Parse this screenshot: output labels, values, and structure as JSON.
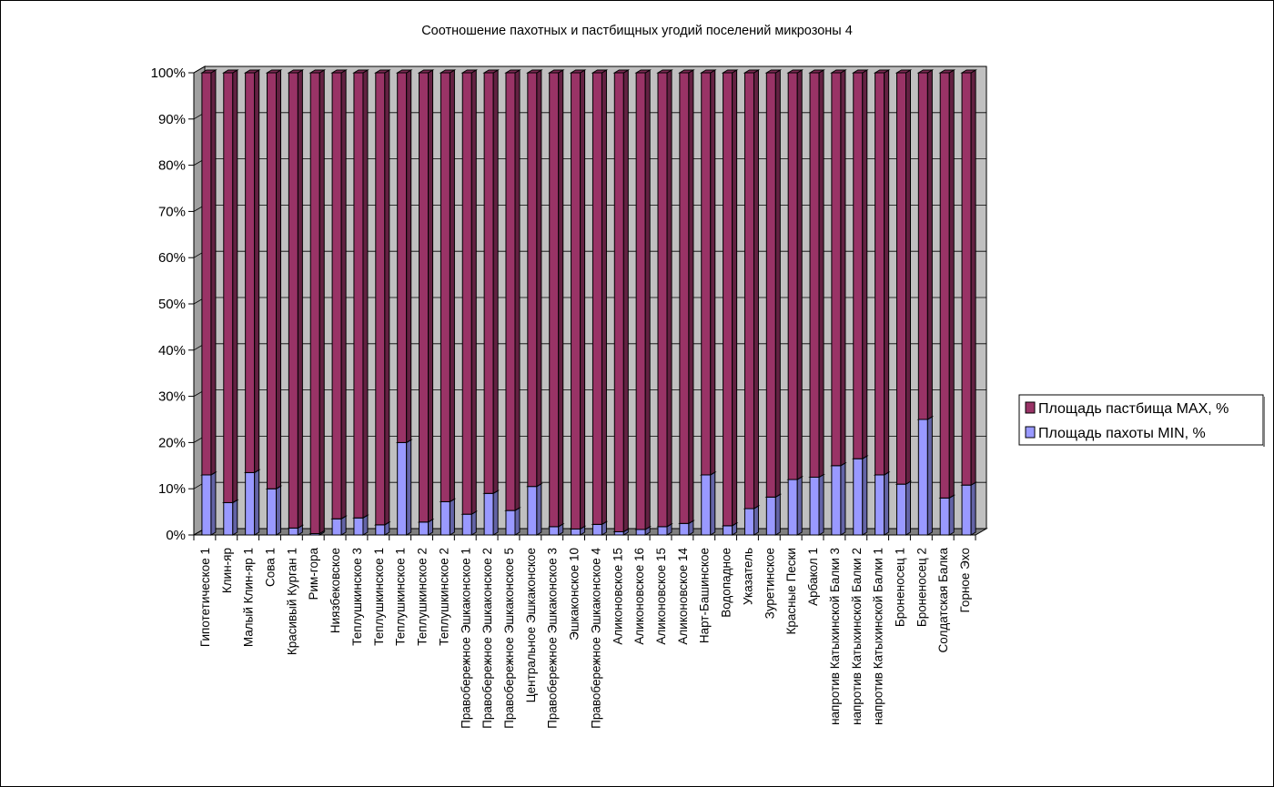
{
  "chart_data": {
    "type": "bar",
    "stacked": "percent",
    "three_d": true,
    "title": "Соотношение пахотных и пастбищных угодий поселений микрозоны 4",
    "xlabel": "",
    "ylabel": "",
    "ylim": [
      0,
      100
    ],
    "yticks": [
      "0%",
      "10%",
      "20%",
      "30%",
      "40%",
      "50%",
      "60%",
      "70%",
      "80%",
      "90%",
      "100%"
    ],
    "grid": true,
    "legend_position": "right",
    "categories": [
      "Гипотетическое 1",
      "Клин-яр",
      "Малый Клин-яр 1",
      "Сова 1",
      "Красивый Курган 1",
      "Рим-гора",
      "Ниязбековское",
      "Теплушкинское 3",
      "Теплушкинское 1",
      "Теплушкинское 1",
      "Теплушкинское 2",
      "Теплушкинское 2",
      "Правобережное Эшкаконское 1",
      "Правобережное Эшкаконское 2",
      "Правобережное Эшкаконское 5",
      "Центральное Эшкаконское",
      "Правобережное Эшкаконское 3",
      "Эшкаконское 10",
      "Правобережное Эшкаконское 4",
      "Аликоновское 15",
      "Аликоновское 16",
      "Аликоновское 15",
      "Аликоновское 14",
      "Нарт-Башинское",
      "Водопадное",
      "Указатель",
      "Зуретинское",
      "Красные Пески",
      "Арбакол 1",
      "напротив Катыхинской Балки 3",
      "напротив Катыхинской Балки 2",
      "напротив Катыхинской Балки 1",
      "Броненосец 1",
      "Броненосец 2",
      "Солдатская Балка",
      "Горное Эхо"
    ],
    "series": [
      {
        "name": "Площадь пахоты MIN, %",
        "color": "#9999ff",
        "values": [
          13,
          7,
          13.5,
          10,
          1.5,
          0.3,
          3.5,
          3.7,
          2.2,
          20,
          2.8,
          7.2,
          4.5,
          9,
          5.3,
          10.5,
          1.8,
          1.3,
          2.3,
          0.7,
          1.2,
          1.8,
          2.5,
          13,
          2,
          5.7,
          8.2,
          12,
          12.5,
          15,
          16.5,
          13,
          11,
          25,
          8,
          10.8
        ]
      },
      {
        "name": "Площадь пастбища MAX, %",
        "color": "#993366",
        "values": [
          87,
          93,
          86.5,
          90,
          98.5,
          99.7,
          96.5,
          96.3,
          97.8,
          80,
          97.2,
          92.8,
          95.5,
          91,
          94.7,
          89.5,
          98.2,
          98.7,
          97.7,
          99.3,
          98.8,
          98.2,
          97.5,
          87,
          98,
          94.3,
          91.8,
          88,
          87.5,
          85,
          83.5,
          87,
          89,
          75,
          92,
          89.2
        ]
      }
    ],
    "legend_order": [
      "Площадь пастбища MAX, %",
      "Площадь пахоты MIN, %"
    ],
    "colors": {
      "wall": "#c0c0c0",
      "floor": "#808080",
      "gridline": "#000000",
      "axis": "#000000"
    }
  }
}
